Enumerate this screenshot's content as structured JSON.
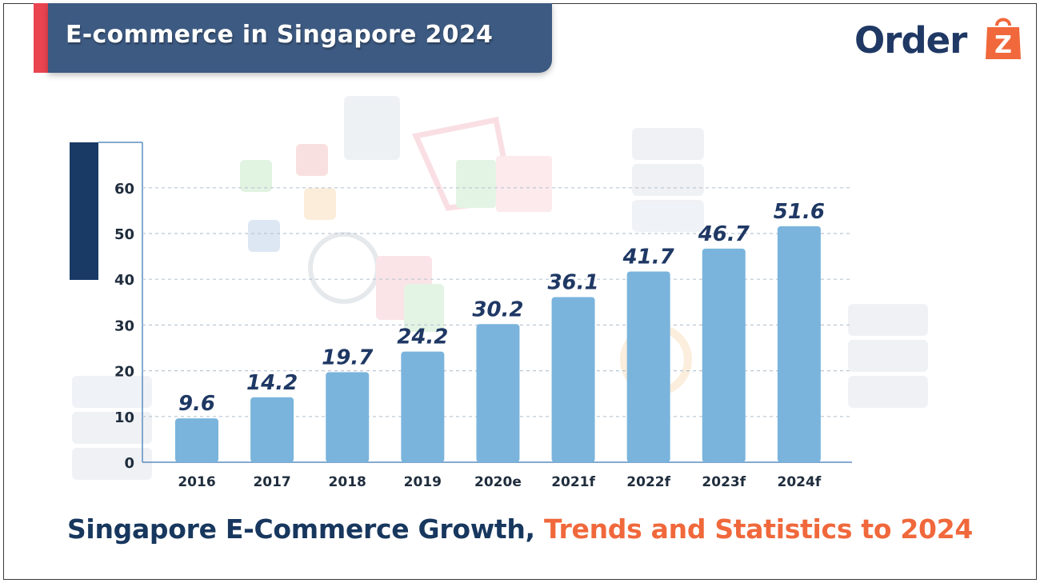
{
  "header": {
    "title": "E-commerce in Singapore 2024"
  },
  "logo": {
    "text": "Order",
    "badge_letter": "Z",
    "text_color": "#1f3864",
    "badge_color": "#f0683b"
  },
  "footer": {
    "part1": "Singapore E-Commerce Growth, ",
    "part2": "Trends and Statistics to 2024",
    "color1": "#17375e",
    "color2": "#f0683b"
  },
  "chart_data": {
    "type": "bar",
    "categories": [
      "2016",
      "2017",
      "2018",
      "2019",
      "2020e",
      "2021f",
      "2022f",
      "2023f",
      "2024f"
    ],
    "values": [
      9.6,
      14.2,
      19.7,
      24.2,
      30.2,
      36.1,
      41.7,
      46.7,
      51.6
    ],
    "data_labels": [
      "9.6",
      "14.2",
      "19.7",
      "24.2",
      "30.2",
      "36.1",
      "41.7",
      "46.7",
      "51.6"
    ],
    "yticks": [
      "0",
      "10",
      "20",
      "30",
      "40",
      "50",
      "60"
    ],
    "ylim": [
      0,
      70
    ],
    "grid": true,
    "bar_color": "#7ab4dc",
    "label_color": "#1f3864"
  }
}
